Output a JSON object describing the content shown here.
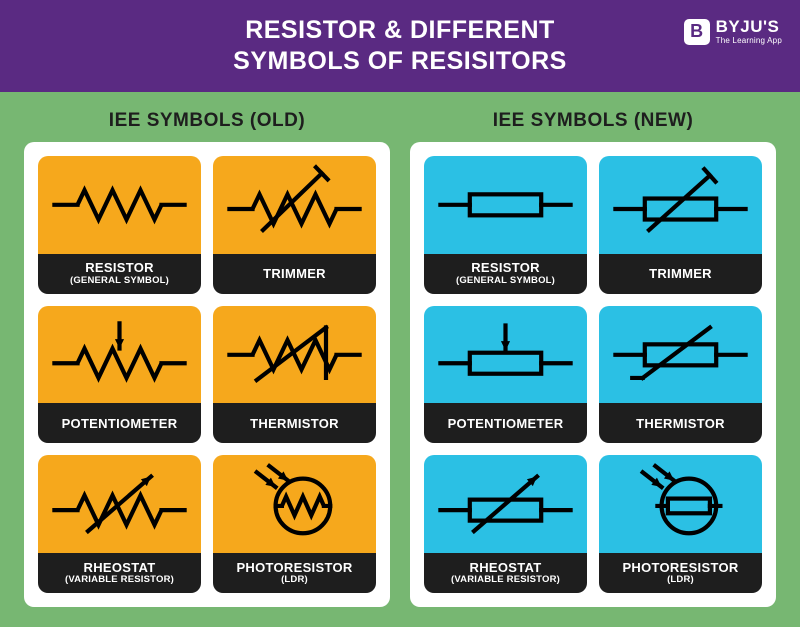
{
  "title_line1": "RESISTOR & DIFFERENT",
  "title_line2": "SYMBOLS OF RESISITORS",
  "brand": {
    "name": "BYJU'S",
    "tagline": "The Learning App",
    "badge": "B"
  },
  "colors": {
    "header_bg": "#5a2a82",
    "body_bg": "#77b772",
    "panel_bg": "#ffffff",
    "old_card_bg": "#f6a81c",
    "new_card_bg": "#2bc0e4",
    "card_label_bg": "#1e1e1e",
    "col_title_color": "#1e1e1e",
    "stroke": "#000000"
  },
  "columns": {
    "old": {
      "title": "IEE SYMBOLS (OLD)"
    },
    "new": {
      "title": "IEE SYMBOLS (NEW)"
    }
  },
  "cards": {
    "resistor": {
      "label": "RESISTOR",
      "sub": "(GENERAL SYMBOL)"
    },
    "trimmer": {
      "label": "TRIMMER",
      "sub": ""
    },
    "potentiometer": {
      "label": "POTENTIOMETER",
      "sub": ""
    },
    "thermistor": {
      "label": "THERMISTOR",
      "sub": ""
    },
    "rheostat": {
      "label": "RHEOSTAT",
      "sub": "(VARIABLE RESISTOR)"
    },
    "photoresistor": {
      "label": "PHOTORESISTOR",
      "sub": "(LDR)"
    }
  },
  "diagram_style": {
    "stroke_width": 4,
    "arrow_len": 10
  }
}
